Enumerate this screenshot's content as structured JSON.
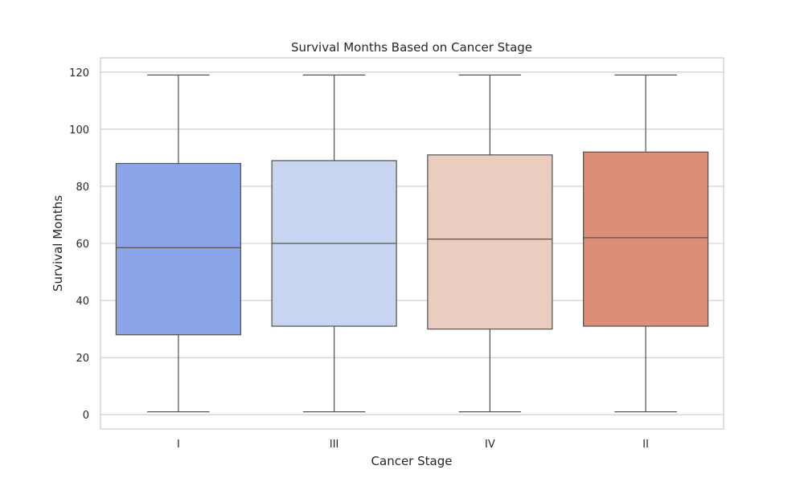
{
  "chart_data": {
    "type": "box",
    "title": "Survival Months Based on Cancer Stage",
    "xlabel": "Cancer Stage",
    "ylabel": "Survival Months",
    "ylim": [
      -5,
      125
    ],
    "yticks": [
      "0",
      "20",
      "40",
      "60",
      "80",
      "100",
      "120"
    ],
    "grid": true,
    "categories": [
      "I",
      "III",
      "IV",
      "II"
    ],
    "boxes": [
      {
        "category": "I",
        "whisker_low": 1,
        "q1": 28,
        "median": 58.5,
        "q3": 88,
        "whisker_high": 119,
        "color": "#8aa5ea"
      },
      {
        "category": "III",
        "whisker_low": 1,
        "q1": 31,
        "median": 60,
        "q3": 89,
        "whisker_high": 119,
        "color": "#c8d5f1"
      },
      {
        "category": "IV",
        "whisker_low": 1,
        "q1": 30,
        "median": 61.5,
        "q3": 91,
        "whisker_high": 119,
        "color": "#eacdbf"
      },
      {
        "category": "II",
        "whisker_low": 1,
        "q1": 31,
        "median": 62,
        "q3": 92,
        "whisker_high": 119,
        "color": "#dc8e77"
      }
    ]
  }
}
